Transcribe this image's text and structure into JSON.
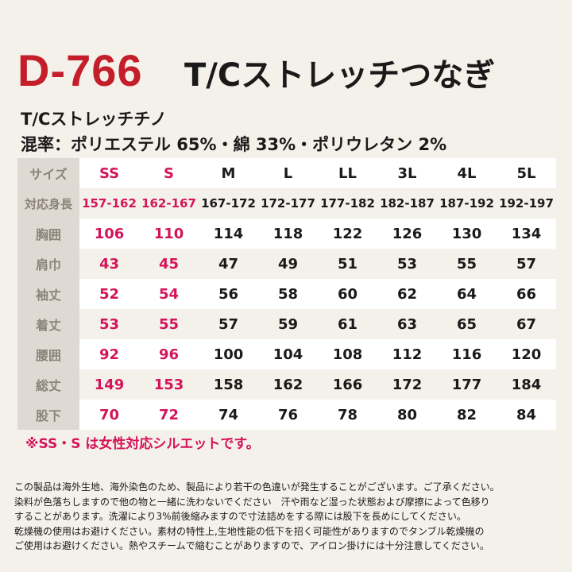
{
  "header": {
    "code": "D-766",
    "title": "T/Cストレッチつなぎ"
  },
  "fabric": {
    "name": "T/Cストレッチチノ",
    "blend": "混率：ポリエステル 65%・綿 33%・ポリウレタン 2%"
  },
  "table": {
    "header": [
      "サイズ",
      "SS",
      "S",
      "M",
      "L",
      "LL",
      "3L",
      "4L",
      "5L"
    ],
    "rows": [
      [
        "対応身長",
        "157-162",
        "162-167",
        "167-172",
        "172-177",
        "177-182",
        "182-187",
        "187-192",
        "192-197"
      ],
      [
        "胸囲",
        "106",
        "110",
        "114",
        "118",
        "122",
        "126",
        "130",
        "134"
      ],
      [
        "肩巾",
        "43",
        "45",
        "47",
        "49",
        "51",
        "53",
        "55",
        "57"
      ],
      [
        "袖丈",
        "52",
        "54",
        "56",
        "58",
        "60",
        "62",
        "64",
        "66"
      ],
      [
        "着丈",
        "53",
        "55",
        "57",
        "59",
        "61",
        "63",
        "65",
        "67"
      ],
      [
        "腰囲",
        "92",
        "96",
        "100",
        "104",
        "108",
        "112",
        "116",
        "120"
      ],
      [
        "総丈",
        "149",
        "153",
        "158",
        "162",
        "166",
        "172",
        "177",
        "184"
      ],
      [
        "股下",
        "70",
        "72",
        "74",
        "76",
        "78",
        "80",
        "82",
        "84"
      ]
    ]
  },
  "note": "※SS・S は女性対応シルエットです。",
  "disclaimer": [
    "この製品は海外生地、海外染色のため、製品により若干の色違いが発生することがございます。ご了承ください。",
    "染料が色落ちしますので他の物と一緒に洗わないでください　汗や雨など湿った状態および摩擦によって色移り",
    "することがあります。洗濯により3%前後縮みますので寸法詰めをする際には股下を長めにしてください。",
    "乾燥機の使用はお避けください。素材の特性上,生地性能の低下を招く可能性がありますのでタンブル乾燥機の",
    "ご使用はお避けください。熱やスチームで縮むことがありますので、アイロン掛けには十分注意してください。"
  ]
}
